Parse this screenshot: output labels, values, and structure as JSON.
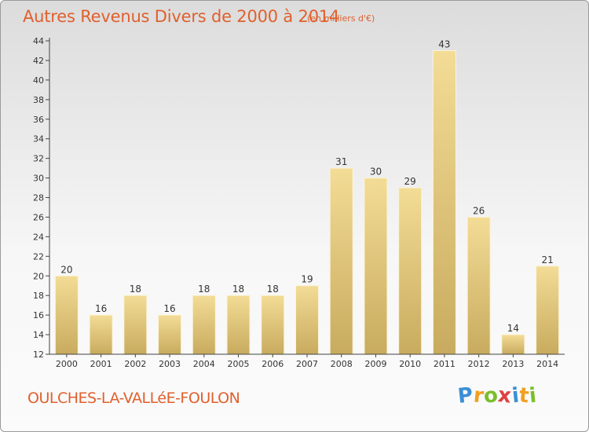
{
  "header": {
    "title": "Autres Revenus Divers de 2000 à 2014",
    "subtitle": "(en milliers d'€)"
  },
  "footer": {
    "commune": "OULCHES-LA-VALLéE-FOULON",
    "logo_letters": [
      "P",
      "r",
      "o",
      "x",
      "i",
      "t",
      "i"
    ],
    "logo_colors": [
      "#3b8fd6",
      "#f0a020",
      "#7bbf2a",
      "#e04040",
      "#3b8fd6",
      "#f0a020",
      "#7bbf2a"
    ]
  },
  "chart_data": {
    "type": "bar",
    "title": "Autres Revenus Divers de 2000 à 2014",
    "subtitle": "(en milliers d'€)",
    "categories": [
      "2000",
      "2001",
      "2002",
      "2003",
      "2004",
      "2005",
      "2006",
      "2007",
      "2008",
      "2009",
      "2010",
      "2011",
      "2012",
      "2013",
      "2014"
    ],
    "values": [
      20,
      16,
      18,
      16,
      18,
      18,
      18,
      19,
      31,
      30,
      29,
      43,
      26,
      14,
      21
    ],
    "ylim": [
      12,
      44
    ],
    "yticks": [
      12,
      14,
      16,
      18,
      20,
      22,
      24,
      26,
      28,
      30,
      32,
      34,
      36,
      38,
      40,
      42,
      44
    ],
    "grid": false,
    "bar_color_light": "#f3dc96",
    "bar_color_dark": "#c8ab5e"
  }
}
